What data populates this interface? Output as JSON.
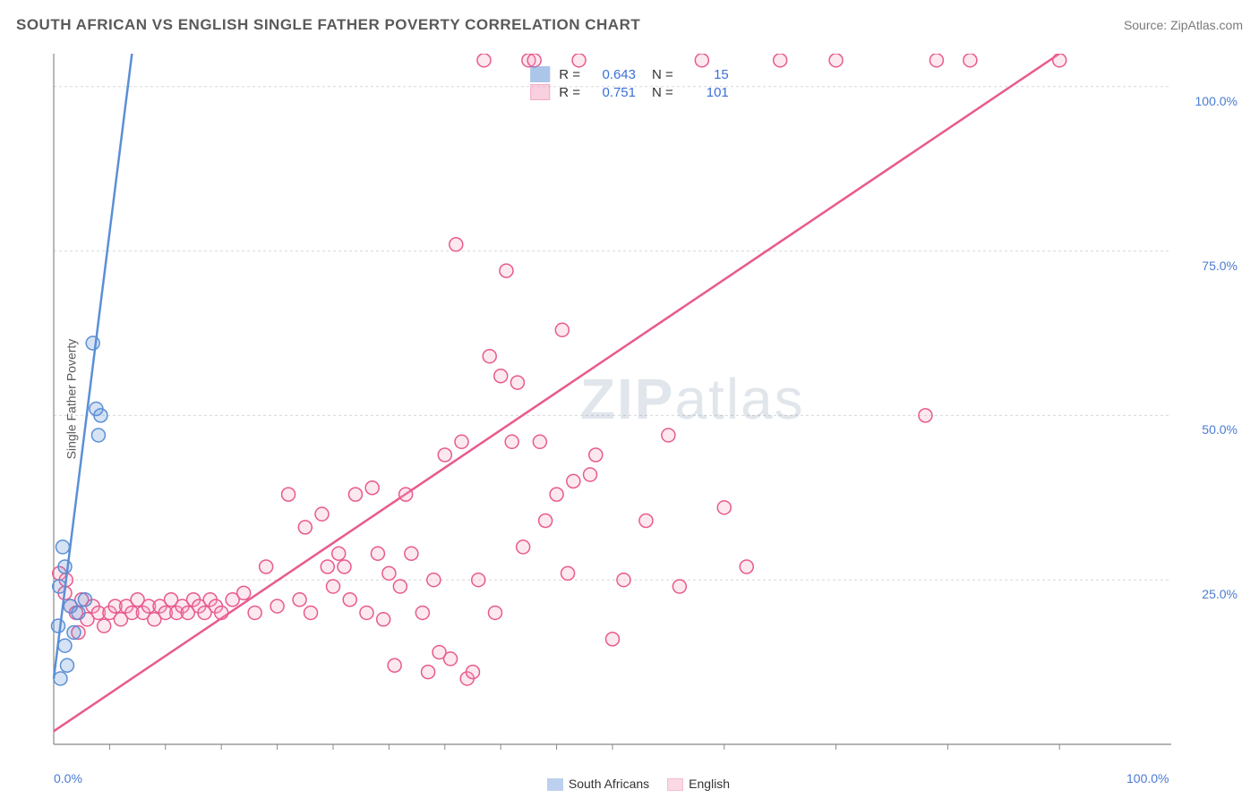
{
  "header": {
    "title": "SOUTH AFRICAN VS ENGLISH SINGLE FATHER POVERTY CORRELATION CHART",
    "source": "Source: ZipAtlas.com"
  },
  "ylabel": "Single Father Poverty",
  "watermark_a": "ZIP",
  "watermark_b": "atlas",
  "chart": {
    "type": "scatter",
    "xlim": [
      0,
      100
    ],
    "ylim": [
      0,
      105
    ],
    "grid_color": "#d8d8d8",
    "grid_dash": "3,3",
    "axis_color": "#888888",
    "background_color": "#ffffff",
    "ytick_labels": [
      "25.0%",
      "50.0%",
      "75.0%",
      "100.0%"
    ],
    "ytick_values": [
      25,
      50,
      75,
      100
    ],
    "xtick_labels": [
      "0.0%",
      "100.0%"
    ],
    "xtick_values": [
      0,
      100
    ],
    "xtick_minor": [
      5,
      10,
      15,
      20,
      25,
      30,
      35,
      40,
      45,
      50,
      60,
      70,
      80,
      90
    ],
    "marker_radius": 7.5,
    "marker_stroke_width": 1.5,
    "marker_fill_opacity": 0.25,
    "trend_line_width": 2.5,
    "series": [
      {
        "name": "South Africans",
        "color": "#5b8fd6",
        "fill": "#5b8fd6",
        "R": "0.643",
        "N": "15",
        "trend": {
          "x1": 0,
          "y1": 10,
          "x2": 7,
          "y2": 105,
          "dashed_ext": true
        },
        "points": [
          [
            0.6,
            10
          ],
          [
            1.2,
            12
          ],
          [
            1.0,
            15
          ],
          [
            1.8,
            17
          ],
          [
            0.4,
            18
          ],
          [
            2.2,
            20
          ],
          [
            1.5,
            21
          ],
          [
            2.8,
            22
          ],
          [
            0.5,
            24
          ],
          [
            1.0,
            27
          ],
          [
            0.8,
            30
          ],
          [
            4.0,
            47
          ],
          [
            4.2,
            50
          ],
          [
            3.8,
            51
          ],
          [
            3.5,
            61
          ]
        ]
      },
      {
        "name": "English",
        "color": "#e85a8e",
        "fill": "#f5a3c0",
        "R": "0.751",
        "N": "101",
        "trend": {
          "x1": 0,
          "y1": 2,
          "x2": 90,
          "y2": 105
        },
        "points": [
          [
            0.5,
            26
          ],
          [
            1.0,
            23
          ],
          [
            1.5,
            21
          ],
          [
            2,
            20
          ],
          [
            2.5,
            22
          ],
          [
            3,
            19
          ],
          [
            3.5,
            21
          ],
          [
            4,
            20
          ],
          [
            4.5,
            18
          ],
          [
            5,
            20
          ],
          [
            5.5,
            21
          ],
          [
            6,
            19
          ],
          [
            6.5,
            21
          ],
          [
            7,
            20
          ],
          [
            7.5,
            22
          ],
          [
            8,
            20
          ],
          [
            8.5,
            21
          ],
          [
            9,
            19
          ],
          [
            9.5,
            21
          ],
          [
            10,
            20
          ],
          [
            10.5,
            22
          ],
          [
            11,
            20
          ],
          [
            11.5,
            21
          ],
          [
            12,
            20
          ],
          [
            12.5,
            22
          ],
          [
            13,
            21
          ],
          [
            13.5,
            20
          ],
          [
            14,
            22
          ],
          [
            14.5,
            21
          ],
          [
            15,
            20
          ],
          [
            16,
            22
          ],
          [
            17,
            23
          ],
          [
            18,
            20
          ],
          [
            19,
            27
          ],
          [
            20,
            21
          ],
          [
            21,
            38
          ],
          [
            22,
            22
          ],
          [
            23,
            20
          ],
          [
            24,
            35
          ],
          [
            25,
            24
          ],
          [
            25.5,
            29
          ],
          [
            26,
            27
          ],
          [
            26.5,
            22
          ],
          [
            27,
            38
          ],
          [
            28,
            20
          ],
          [
            29,
            29
          ],
          [
            30,
            26
          ],
          [
            30.5,
            12
          ],
          [
            31,
            24
          ],
          [
            32,
            29
          ],
          [
            33,
            20
          ],
          [
            33.5,
            11
          ],
          [
            34,
            25
          ],
          [
            35,
            44
          ],
          [
            35.5,
            13
          ],
          [
            36,
            76
          ],
          [
            37,
            10
          ],
          [
            37.5,
            11
          ],
          [
            38,
            25
          ],
          [
            38.5,
            104
          ],
          [
            39,
            59
          ],
          [
            40,
            56
          ],
          [
            40.5,
            72
          ],
          [
            41,
            46
          ],
          [
            42,
            30
          ],
          [
            42.5,
            104
          ],
          [
            43,
            104
          ],
          [
            44,
            34
          ],
          [
            45,
            38
          ],
          [
            45.5,
            63
          ],
          [
            46,
            26
          ],
          [
            46.5,
            40
          ],
          [
            47,
            104
          ],
          [
            48,
            41
          ],
          [
            50,
            16
          ],
          [
            53,
            34
          ],
          [
            55,
            47
          ],
          [
            58,
            104
          ],
          [
            65,
            104
          ],
          [
            70,
            104
          ],
          [
            78,
            50
          ],
          [
            79,
            104
          ],
          [
            82,
            104
          ],
          [
            90,
            104
          ],
          [
            60,
            36
          ],
          [
            62,
            27
          ],
          [
            22.5,
            33
          ],
          [
            24.5,
            27
          ],
          [
            28.5,
            39
          ],
          [
            29.5,
            19
          ],
          [
            31.5,
            38
          ],
          [
            36.5,
            46
          ],
          [
            39.5,
            20
          ],
          [
            41.5,
            55
          ],
          [
            43.5,
            46
          ],
          [
            48.5,
            44
          ],
          [
            51,
            25
          ],
          [
            56,
            24
          ],
          [
            34.5,
            14
          ],
          [
            2.2,
            17
          ],
          [
            1.1,
            25
          ]
        ]
      }
    ]
  },
  "legend": {
    "r_label": "R =",
    "n_label": "N ="
  }
}
